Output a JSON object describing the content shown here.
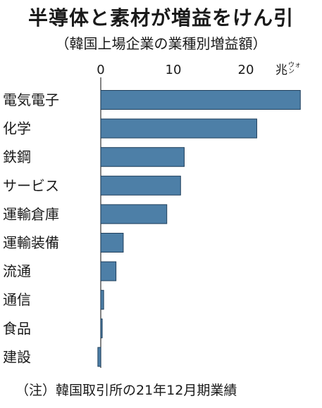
{
  "chart_data": {
    "type": "bar",
    "orientation": "horizontal",
    "title": "半導体と素材が増益をけん引",
    "subtitle": "（韓国上場企業の業種別増益額）",
    "unit_label": {
      "main": "兆",
      "sub_top": "ウォ",
      "sub_bottom": "ン"
    },
    "categories": [
      "電気電子",
      "化学",
      "鉄鋼",
      "サービス",
      "運輸倉庫",
      "運輸装備",
      "流通",
      "通信",
      "食品",
      "建設"
    ],
    "values": [
      27.5,
      21.5,
      11.5,
      11.0,
      9.1,
      3.1,
      2.1,
      0.4,
      0.2,
      -0.4
    ],
    "xlim": [
      -1,
      28.5
    ],
    "xticks": [
      0,
      10,
      20
    ],
    "bar_color": "#4d7fa7",
    "bar_edge_color": "#1f3f5c",
    "note": "（注）韓国取引所の21年12月期業績"
  }
}
